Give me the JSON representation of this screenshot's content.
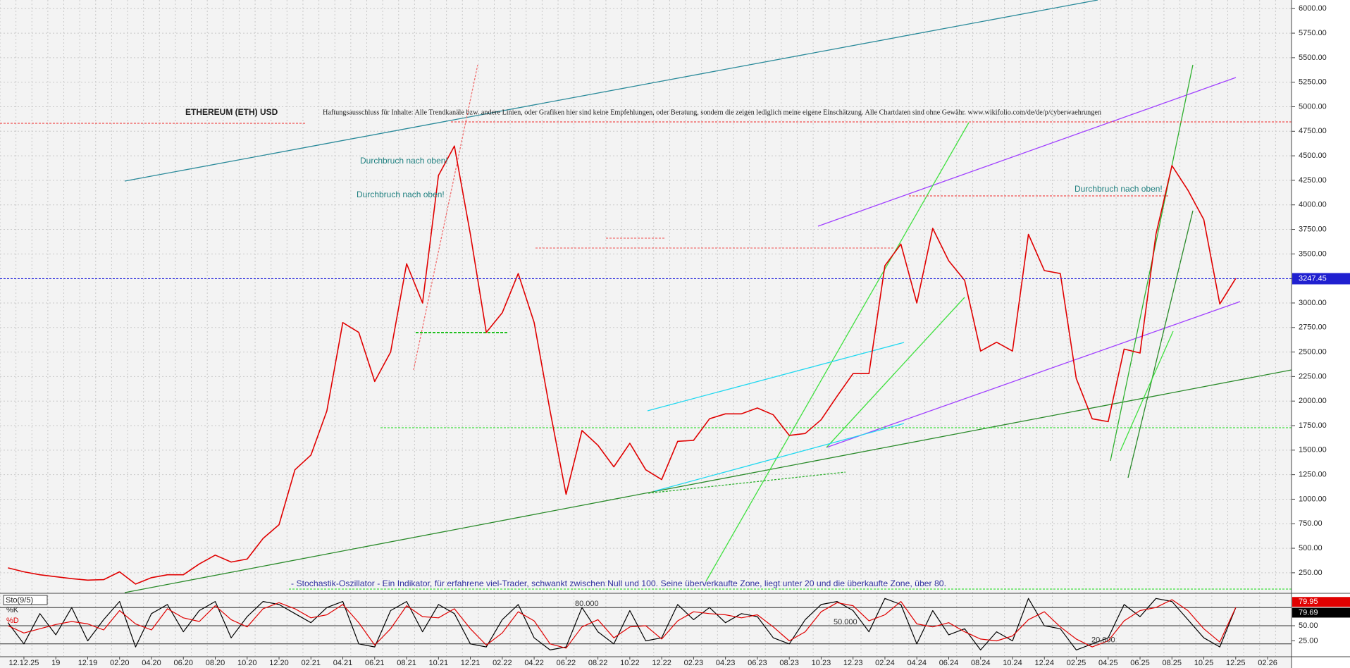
{
  "chart_data": [
    {
      "type": "line",
      "title": "ETHEREUM (ETH) USD",
      "subtitle": "Haftungsausschluss für Inhalte: Alle Trendkanäle bzw. andere Linien, oder Grafiken hier sind keine Empfehlungen, oder Beratung, sondern die zeigen lediglich meine eigene Einschätzung. Alle Chartdaten sind ohne Gewähr. www.wikifolio.com/de/de/p/cyberwaehrungen",
      "annotations": [
        "Durchbruch nach oben!",
        "Durchbruch nach oben!",
        "Durchbruch nach oben!",
        "- Stochastik-Oszillator - Ein Indikator, für erfahrene viel-Trader, schwankt zwischen Null und 100. Seine überverkaufte Zone, liegt unter 20 und die überkaufte Zone, über 80."
      ],
      "categories": [
        null,
        "12.12.25",
        null,
        "19",
        null,
        "12.19",
        null,
        "02.20",
        null,
        "04.20",
        null,
        "06.20",
        null,
        "08.20",
        null,
        "10.20",
        null,
        "12.20",
        null,
        "02.21",
        null,
        "04.21",
        null,
        "06.21",
        null,
        "08.21",
        null,
        "10.21",
        null,
        "12.21",
        null,
        "02.22",
        null,
        "04.22",
        null,
        "06.22",
        null,
        "08.22",
        null,
        "10.22",
        null,
        "12.22",
        null,
        "02.23",
        null,
        "04.23",
        null,
        "06.23",
        null,
        "08.23",
        null,
        "10.23",
        null,
        "12.23",
        null,
        "02.24",
        null,
        "04.24",
        null,
        "06.24",
        null,
        "08.24",
        null,
        "10.24",
        null,
        "12.24",
        null,
        "02.25",
        null,
        "04.25",
        null,
        "06.25",
        null,
        "08.25",
        null,
        "10.25",
        null,
        "12.25",
        null,
        "02.26",
        null
      ],
      "series": [
        {
          "color": "#e00000",
          "values": [
            300,
            260,
            230,
            210,
            190,
            175,
            180,
            260,
            135,
            200,
            230,
            230,
            340,
            430,
            360,
            390,
            600,
            740,
            1300,
            1450,
            1900,
            2800,
            2700,
            2200,
            2500,
            3400,
            3000,
            4300,
            4600,
            3700,
            2700,
            2900,
            3300,
            2800,
            1900,
            1050,
            1700,
            1550,
            1330,
            1570,
            1300,
            1200,
            1590,
            1600,
            1820,
            1870,
            1870,
            1930,
            1860,
            1650,
            1670,
            1810,
            2050,
            2280,
            2280,
            3380,
            3600,
            3000,
            3760,
            3430,
            3230,
            2510,
            2600,
            2510,
            3700,
            3330,
            3300,
            2230,
            1820,
            1790,
            2530,
            2490,
            3700,
            4400,
            4150,
            3850,
            2990,
            3250,
            null,
            null,
            null
          ]
        }
      ],
      "current_price": 3247.45,
      "ylim": [
        48,
        6088
      ],
      "yticks": [
        {
          "value": 250,
          "label": "250.00"
        },
        {
          "value": 500,
          "label": "500.00"
        },
        {
          "value": 750,
          "label": "750.00"
        },
        {
          "value": 1000,
          "label": "1000.00"
        },
        {
          "value": 1250,
          "label": "1250.00"
        },
        {
          "value": 1500,
          "label": "1500.00"
        },
        {
          "value": 1750,
          "label": "1750.00"
        },
        {
          "value": 2000,
          "label": "2000.00"
        },
        {
          "value": 2250,
          "label": "2250.00"
        },
        {
          "value": 2500,
          "label": "2500.00"
        },
        {
          "value": 2750,
          "label": "2750.00"
        },
        {
          "value": 3000,
          "label": "3000.00"
        },
        {
          "value": 3250,
          "label": "3250.00"
        },
        {
          "value": 3500,
          "label": "3500.00"
        },
        {
          "value": 3750,
          "label": "3750.00"
        },
        {
          "value": 4000,
          "label": "4000.00"
        },
        {
          "value": 4250,
          "label": "4250.00"
        },
        {
          "value": 4500,
          "label": "4500.00"
        },
        {
          "value": 4750,
          "label": "4750.00"
        },
        {
          "value": 5000,
          "label": "5000.00"
        },
        {
          "value": 5250,
          "label": "5250.00"
        },
        {
          "value": 5500,
          "label": "5500.00"
        },
        {
          "value": 5750,
          "label": "5750.00"
        },
        {
          "value": 6000,
          "label": "6000.00"
        }
      ],
      "grid": true
    },
    {
      "type": "line",
      "title": "Sto(9/5)",
      "series": [
        {
          "name": "%K",
          "color": "#000000",
          "values": [
            55,
            20,
            70,
            35,
            80,
            25,
            60,
            90,
            15,
            70,
            85,
            40,
            75,
            90,
            30,
            65,
            90,
            85,
            70,
            55,
            80,
            90,
            20,
            15,
            75,
            90,
            40,
            85,
            70,
            20,
            15,
            60,
            85,
            30,
            10,
            15,
            80,
            40,
            20,
            75,
            25,
            30,
            85,
            60,
            80,
            55,
            70,
            65,
            30,
            20,
            60,
            85,
            90,
            75,
            40,
            95,
            85,
            20,
            75,
            35,
            45,
            10,
            40,
            25,
            95,
            50,
            45,
            10,
            20,
            30,
            85,
            65,
            95,
            90,
            60,
            30,
            15,
            79.69,
            null,
            null,
            null
          ]
        },
        {
          "name": "%D",
          "color": "#e00000",
          "values": [
            50,
            38,
            45,
            52,
            57,
            53,
            43,
            75,
            53,
            43,
            78,
            63,
            57,
            83,
            60,
            48,
            78,
            88,
            78,
            63,
            68,
            85,
            55,
            18,
            45,
            83,
            65,
            63,
            78,
            45,
            18,
            38,
            73,
            58,
            20,
            13,
            48,
            60,
            30,
            48,
            50,
            28,
            58,
            73,
            70,
            68,
            63,
            68,
            48,
            25,
            40,
            73,
            88,
            83,
            58,
            68,
            90,
            53,
            48,
            55,
            40,
            28,
            25,
            33,
            60,
            73,
            48,
            28,
            15,
            25,
            58,
            75,
            80,
            93,
            75,
            45,
            23,
            79.95,
            null,
            null,
            null
          ]
        }
      ],
      "ylim": [
        0,
        100
      ],
      "yticks": [
        {
          "value": 25,
          "label": "25.00"
        },
        {
          "value": 50,
          "label": "50.00"
        }
      ],
      "levels": [
        {
          "value": 80,
          "label": "80.000"
        },
        {
          "value": 50,
          "label": "50.000"
        },
        {
          "value": 20,
          "label": "20.000"
        }
      ]
    }
  ]
}
